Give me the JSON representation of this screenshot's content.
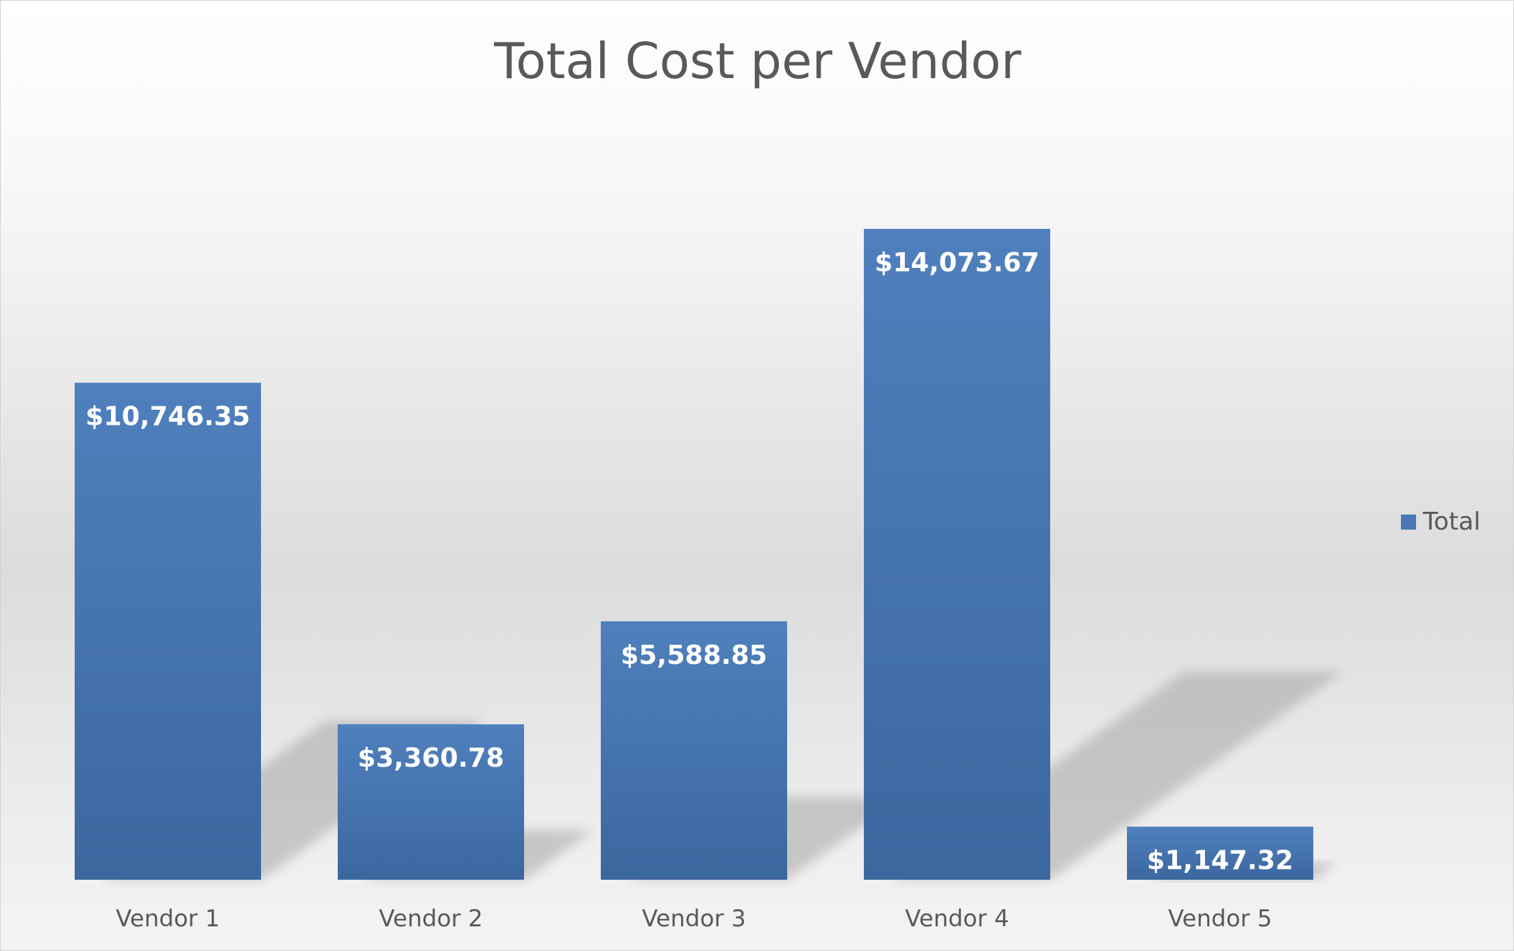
{
  "chart_data": {
    "type": "bar",
    "title": "Total Cost per Vendor",
    "categories": [
      "Vendor 1",
      "Vendor 2",
      "Vendor 3",
      "Vendor 4",
      "Vendor 5"
    ],
    "series": [
      {
        "name": "Total",
        "values": [
          10746.35,
          3360.78,
          5588.85,
          14073.67,
          1147.32
        ],
        "labels": [
          "$10,746.35",
          "$3,360.78",
          "$5,588.85",
          "$14,073.67",
          "$1,147.32"
        ]
      }
    ],
    "ylim": [
      0,
      16000
    ],
    "grid": false,
    "legend": "right",
    "bar_color": "#4a78b4"
  }
}
